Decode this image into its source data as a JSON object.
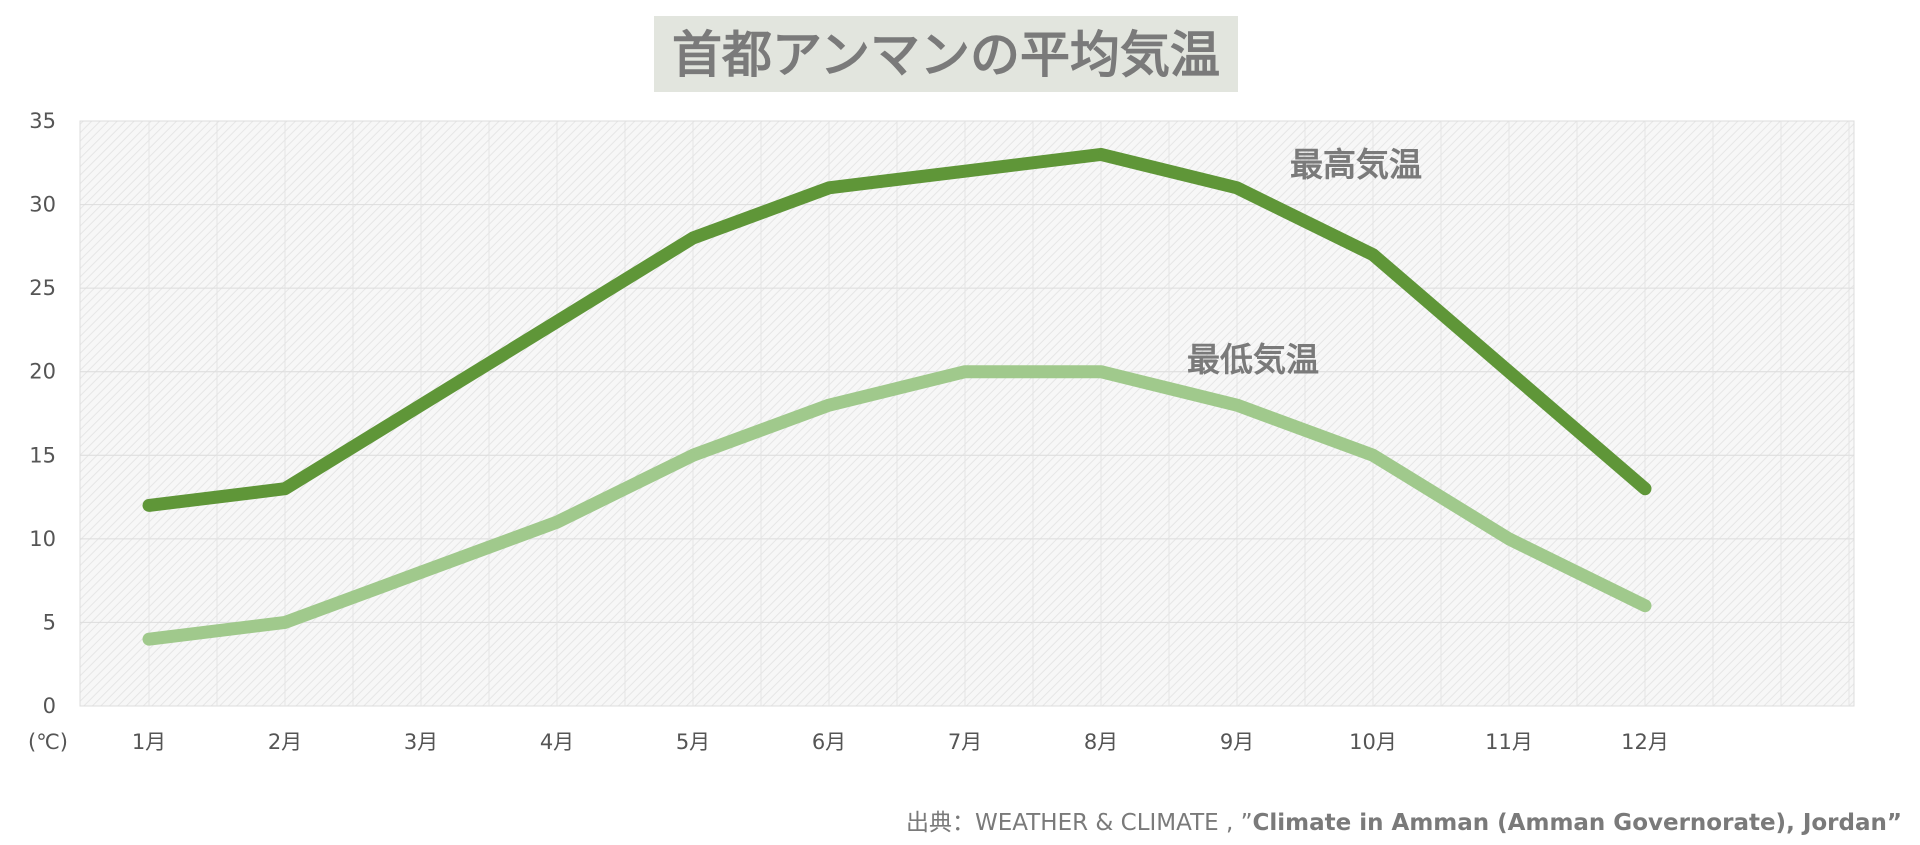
{
  "chart_data": {
    "type": "line",
    "title": "首都アンマンの平均気温",
    "unit_label": "(℃)",
    "categories": [
      "1月",
      "2月",
      "3月",
      "4月",
      "5月",
      "6月",
      "7月",
      "8月",
      "9月",
      "10月",
      "11月",
      "12月"
    ],
    "ylim": [
      0,
      35
    ],
    "y_ticks": [
      "0",
      "5",
      "10",
      "15",
      "20",
      "25",
      "30",
      "35"
    ],
    "grid": true,
    "series": [
      {
        "name": "最高気温",
        "color": "#5f9638",
        "values": [
          12,
          13,
          18,
          23,
          28,
          31,
          32,
          33,
          31,
          27,
          20,
          13
        ]
      },
      {
        "name": "最低気温",
        "color": "#a0c98c",
        "values": [
          4,
          5,
          8,
          11,
          15,
          18,
          20,
          20,
          18,
          15,
          10,
          6
        ]
      }
    ]
  },
  "source": {
    "prefix": "出典：WEATHER & CLIMATE , ”",
    "title": "Climate in Amman (Amman Governorate), Jordan”"
  }
}
